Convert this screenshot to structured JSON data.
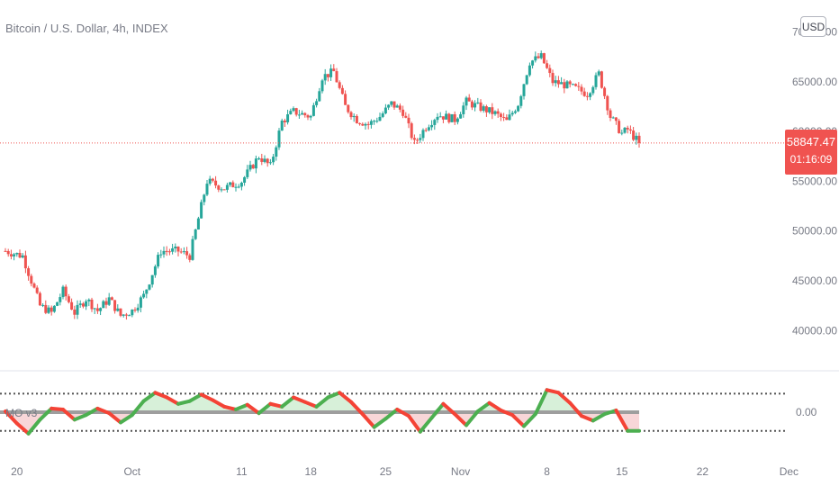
{
  "header": {
    "title": "Bitcoin / U.S. Dollar, 4h, INDEX",
    "currency_badge": "USD"
  },
  "indicator": {
    "label": "MO v3"
  },
  "last_price": {
    "price": "58847.47",
    "countdown": "01:16:09",
    "value": 58847.47
  },
  "colors": {
    "up": "#26a69a",
    "down": "#ef5350",
    "last_line": "#ef5350",
    "osc_pos": "#4caf50",
    "osc_neg": "#f44336",
    "fill_pos": "#d7f0d9",
    "fill_neg": "#f8d6d8",
    "zero_line": "#9e9e9e"
  },
  "chart_data": [
    {
      "type": "candlestick",
      "title": "Bitcoin / U.S. Dollar, 4h, INDEX",
      "y_ticks": [
        "40000.00",
        "45000.00",
        "50000.00",
        "55000.00",
        "60000.00",
        "65000.00",
        "70000.00"
      ],
      "x_ticks": [
        "20",
        "Oct",
        "11",
        "18",
        "25",
        "Nov",
        "8",
        "15",
        "22",
        "Dec"
      ],
      "ylim": [
        37500,
        70500
      ],
      "close_path": [
        {
          "x": 0,
          "y": 48000
        },
        {
          "x": 3,
          "y": 47500
        },
        {
          "x": 6,
          "y": 42500
        },
        {
          "x": 8,
          "y": 41800
        },
        {
          "x": 10,
          "y": 44000
        },
        {
          "x": 12,
          "y": 41800
        },
        {
          "x": 14,
          "y": 43200
        },
        {
          "x": 16,
          "y": 42000
        },
        {
          "x": 18,
          "y": 43200
        },
        {
          "x": 20,
          "y": 41500
        },
        {
          "x": 22,
          "y": 42000
        },
        {
          "x": 24,
          "y": 43500
        },
        {
          "x": 27,
          "y": 48000
        },
        {
          "x": 30,
          "y": 48000
        },
        {
          "x": 32,
          "y": 47500
        },
        {
          "x": 35,
          "y": 55000
        },
        {
          "x": 38,
          "y": 54300
        },
        {
          "x": 41,
          "y": 55000
        },
        {
          "x": 44,
          "y": 57500
        },
        {
          "x": 46,
          "y": 56500
        },
        {
          "x": 48,
          "y": 61000
        },
        {
          "x": 50,
          "y": 62000
        },
        {
          "x": 53,
          "y": 61500
        },
        {
          "x": 55,
          "y": 65500
        },
        {
          "x": 57,
          "y": 66000
        },
        {
          "x": 59,
          "y": 62500
        },
        {
          "x": 61,
          "y": 61200
        },
        {
          "x": 63,
          "y": 60700
        },
        {
          "x": 65,
          "y": 61500
        },
        {
          "x": 67,
          "y": 62800
        },
        {
          "x": 69,
          "y": 62000
        },
        {
          "x": 71,
          "y": 58800
        },
        {
          "x": 73,
          "y": 60500
        },
        {
          "x": 75,
          "y": 61700
        },
        {
          "x": 78,
          "y": 61200
        },
        {
          "x": 80,
          "y": 63000
        },
        {
          "x": 82,
          "y": 62500
        },
        {
          "x": 85,
          "y": 61800
        },
        {
          "x": 87,
          "y": 61000
        },
        {
          "x": 89,
          "y": 62800
        },
        {
          "x": 91,
          "y": 67000
        },
        {
          "x": 93,
          "y": 67500
        },
        {
          "x": 95,
          "y": 65000
        },
        {
          "x": 97,
          "y": 64700
        },
        {
          "x": 99,
          "y": 64300
        },
        {
          "x": 101,
          "y": 63800
        },
        {
          "x": 103,
          "y": 65800
        },
        {
          "x": 105,
          "y": 61500
        },
        {
          "x": 107,
          "y": 59800
        },
        {
          "x": 108,
          "y": 60200
        },
        {
          "x": 110,
          "y": 58847
        }
      ]
    },
    {
      "type": "area",
      "title": "MO v3",
      "y_ticks": [
        "0.00"
      ],
      "upper_band": 1,
      "lower_band": -1,
      "ylim": [
        -1.45,
        1.6
      ],
      "series": [
        {
          "x": [
            0,
            2,
            4,
            6,
            8,
            10,
            12,
            14,
            16,
            18,
            20,
            22,
            24,
            26,
            28,
            30,
            32,
            34,
            36,
            38,
            40,
            42,
            44,
            46,
            48,
            50,
            52,
            54,
            56,
            58,
            60,
            62,
            64,
            66,
            68,
            70,
            72,
            74,
            76,
            78,
            80,
            82,
            84,
            86,
            88,
            90,
            92,
            94,
            96,
            98,
            100,
            102,
            104,
            106,
            108,
            110
          ],
          "values": [
            0.05,
            -0.6,
            -1.15,
            -0.4,
            0.2,
            0.15,
            -0.4,
            -0.15,
            0.2,
            -0.05,
            -0.55,
            -0.15,
            0.6,
            1.05,
            0.8,
            0.45,
            0.6,
            0.95,
            0.65,
            0.3,
            0.15,
            0.4,
            -0.05,
            0.45,
            0.3,
            0.8,
            0.55,
            0.3,
            0.8,
            1.05,
            0.55,
            -0.1,
            -0.8,
            -0.35,
            0.15,
            -0.2,
            -1.05,
            -0.3,
            0.45,
            -0.1,
            -0.7,
            0.05,
            0.5,
            0.1,
            -0.15,
            -0.75,
            -0.1,
            1.2,
            1.05,
            0.5,
            -0.2,
            -0.45,
            -0.1,
            0.1,
            -1.0,
            -1.0
          ]
        }
      ]
    }
  ]
}
